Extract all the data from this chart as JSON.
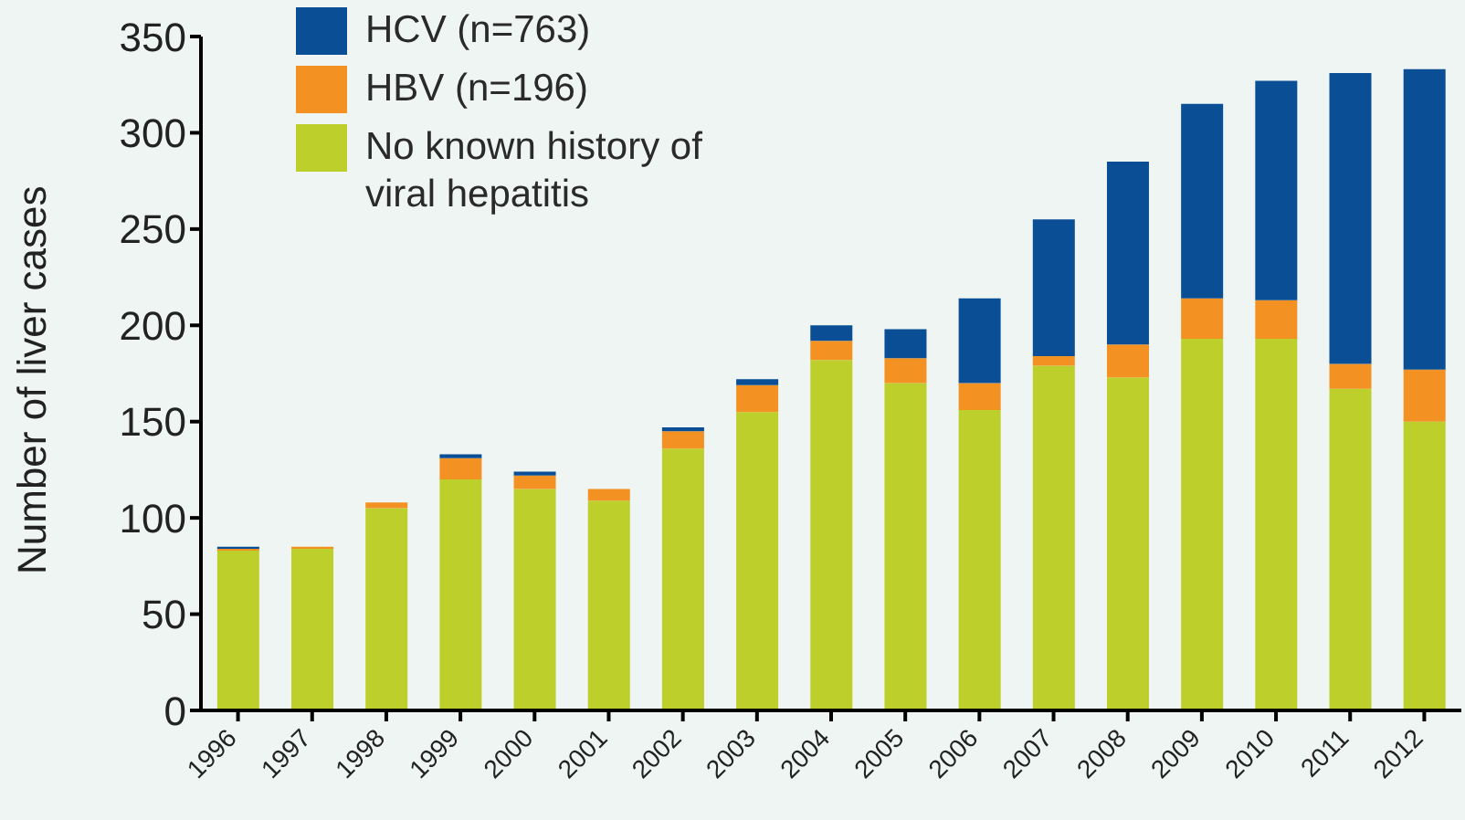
{
  "chart_data": {
    "type": "bar",
    "stacked": true,
    "ylabel": "Number of liver cases",
    "categories": [
      "1996",
      "1997",
      "1998",
      "1999",
      "2000",
      "2001",
      "2002",
      "2003",
      "2004",
      "2005",
      "2006",
      "2007",
      "2008",
      "2009",
      "2010",
      "2011",
      "2012"
    ],
    "series": [
      {
        "name": "No known history of viral hepatitis",
        "color": "#bccf2a",
        "values": [
          83,
          84,
          105,
          120,
          115,
          109,
          136,
          155,
          182,
          170,
          156,
          179,
          173,
          193,
          193,
          167,
          150
        ]
      },
      {
        "name": "HBV (n=196)",
        "color": "#f39222",
        "values": [
          1,
          1,
          3,
          11,
          7,
          6,
          9,
          14,
          10,
          13,
          14,
          5,
          17,
          21,
          20,
          13,
          27
        ]
      },
      {
        "name": "HCV (n=763)",
        "color": "#0a4f96",
        "values": [
          1,
          0,
          0,
          2,
          2,
          0,
          2,
          3,
          8,
          15,
          44,
          71,
          95,
          101,
          114,
          151,
          156
        ]
      }
    ],
    "ylim": [
      0,
      350
    ],
    "yticks": [
      0,
      50,
      100,
      150,
      200,
      250,
      300,
      350
    ],
    "grid": false,
    "legend": "top left"
  }
}
